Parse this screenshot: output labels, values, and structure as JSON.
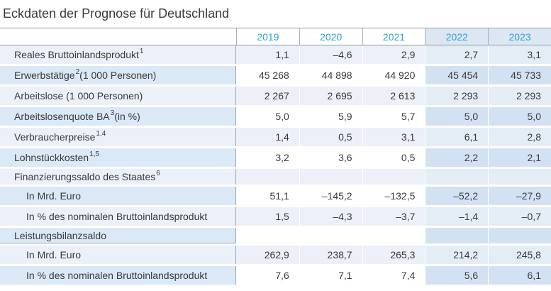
{
  "title": "Eckdaten der Prognose für Deutschland",
  "colors": {
    "year_header_text": "#2ea3c8",
    "body_text": "#3a3a3a",
    "grid_line": "#8f969d",
    "column_divider": "#9da4ab",
    "stripe_row": "#ecf0f8",
    "stripe_forecast_cell": "#e4ecf6",
    "alt_label_cell": "#dbe8f6",
    "alt_forecast_cell": "#d3e2f2",
    "header_forecast_cell": "#dce7f3"
  },
  "table": {
    "years": [
      "2019",
      "2020",
      "2021",
      "2022",
      "2023"
    ],
    "forecast_years": [
      "2022",
      "2023"
    ],
    "rows": [
      {
        "kind": "data",
        "shade": "stripe",
        "indent": "main",
        "label_pre": "Reales Bruttoinlandsprodukt",
        "sup": "1",
        "label_post": "",
        "values": [
          "1,1",
          "–4,6",
          "2,9",
          "2,7",
          "3,1"
        ]
      },
      {
        "kind": "data",
        "shade": "alt",
        "indent": "main",
        "label_pre": "Erwerbstätige",
        "sup": "2",
        "label_post": " (1 000 Personen)",
        "values": [
          "45 268",
          "44 898",
          "44 920",
          "45 454",
          "45 733"
        ]
      },
      {
        "kind": "data",
        "shade": "stripe",
        "indent": "main",
        "label_pre": "Arbeitslose (1 000 Personen)",
        "sup": "",
        "label_post": "",
        "values": [
          "2 267",
          "2 695",
          "2 613",
          "2 293",
          "2 293"
        ]
      },
      {
        "kind": "data",
        "shade": "alt",
        "indent": "main",
        "label_pre": "Arbeitslosenquote BA",
        "sup": "3",
        "label_post": " (in %)",
        "values": [
          "5,0",
          "5,9",
          "5,7",
          "5,0",
          "5,0"
        ]
      },
      {
        "kind": "data",
        "shade": "stripe",
        "indent": "main",
        "label_pre": "Verbraucherpreise",
        "sup": "1,4",
        "label_post": "",
        "values": [
          "1,4",
          "0,5",
          "3,1",
          "6,1",
          "2,8"
        ]
      },
      {
        "kind": "data",
        "shade": "alt",
        "indent": "main",
        "label_pre": "Lohnstückkosten",
        "sup": "1,5",
        "label_post": "",
        "values": [
          "3,2",
          "3,6",
          "0,5",
          "2,2",
          "2,1"
        ]
      },
      {
        "kind": "section",
        "shade": "stripe",
        "indent": "main",
        "label_pre": "Finanzierungssaldo des Staates",
        "sup": "6",
        "label_post": "",
        "values": [
          "",
          "",
          "",
          "",
          ""
        ]
      },
      {
        "kind": "data",
        "shade": "alt",
        "indent": "sub",
        "label_pre": "In Mrd. Euro",
        "sup": "",
        "label_post": "",
        "values": [
          "51,1",
          "–145,2",
          "–132,5",
          "–52,2",
          "–27,9"
        ]
      },
      {
        "kind": "data",
        "shade": "stripe",
        "indent": "sub",
        "label_pre": "In % des nominalen Bruttoinlandsprodukt",
        "sup": "",
        "label_post": "",
        "values": [
          "1,5",
          "–4,3",
          "–3,7",
          "–1,4",
          "–0,7"
        ]
      },
      {
        "kind": "section-underline",
        "shade": "alt",
        "indent": "main",
        "label_pre": "Leistungsbilanzsaldo",
        "sup": "",
        "label_post": "",
        "values": [
          "",
          "",
          "",
          "",
          ""
        ]
      },
      {
        "kind": "data",
        "shade": "stripe",
        "indent": "sub",
        "label_pre": "In Mrd. Euro",
        "sup": "",
        "label_post": "",
        "values": [
          "262,9",
          "238,7",
          "265,3",
          "214,2",
          "245,8"
        ]
      },
      {
        "kind": "data",
        "shade": "alt",
        "indent": "sub",
        "label_pre": "In % des nominalen Bruttoinlandsprodukt",
        "sup": "",
        "label_post": "",
        "values": [
          "7,6",
          "7,1",
          "7,4",
          "5,6",
          "6,1"
        ]
      }
    ]
  }
}
